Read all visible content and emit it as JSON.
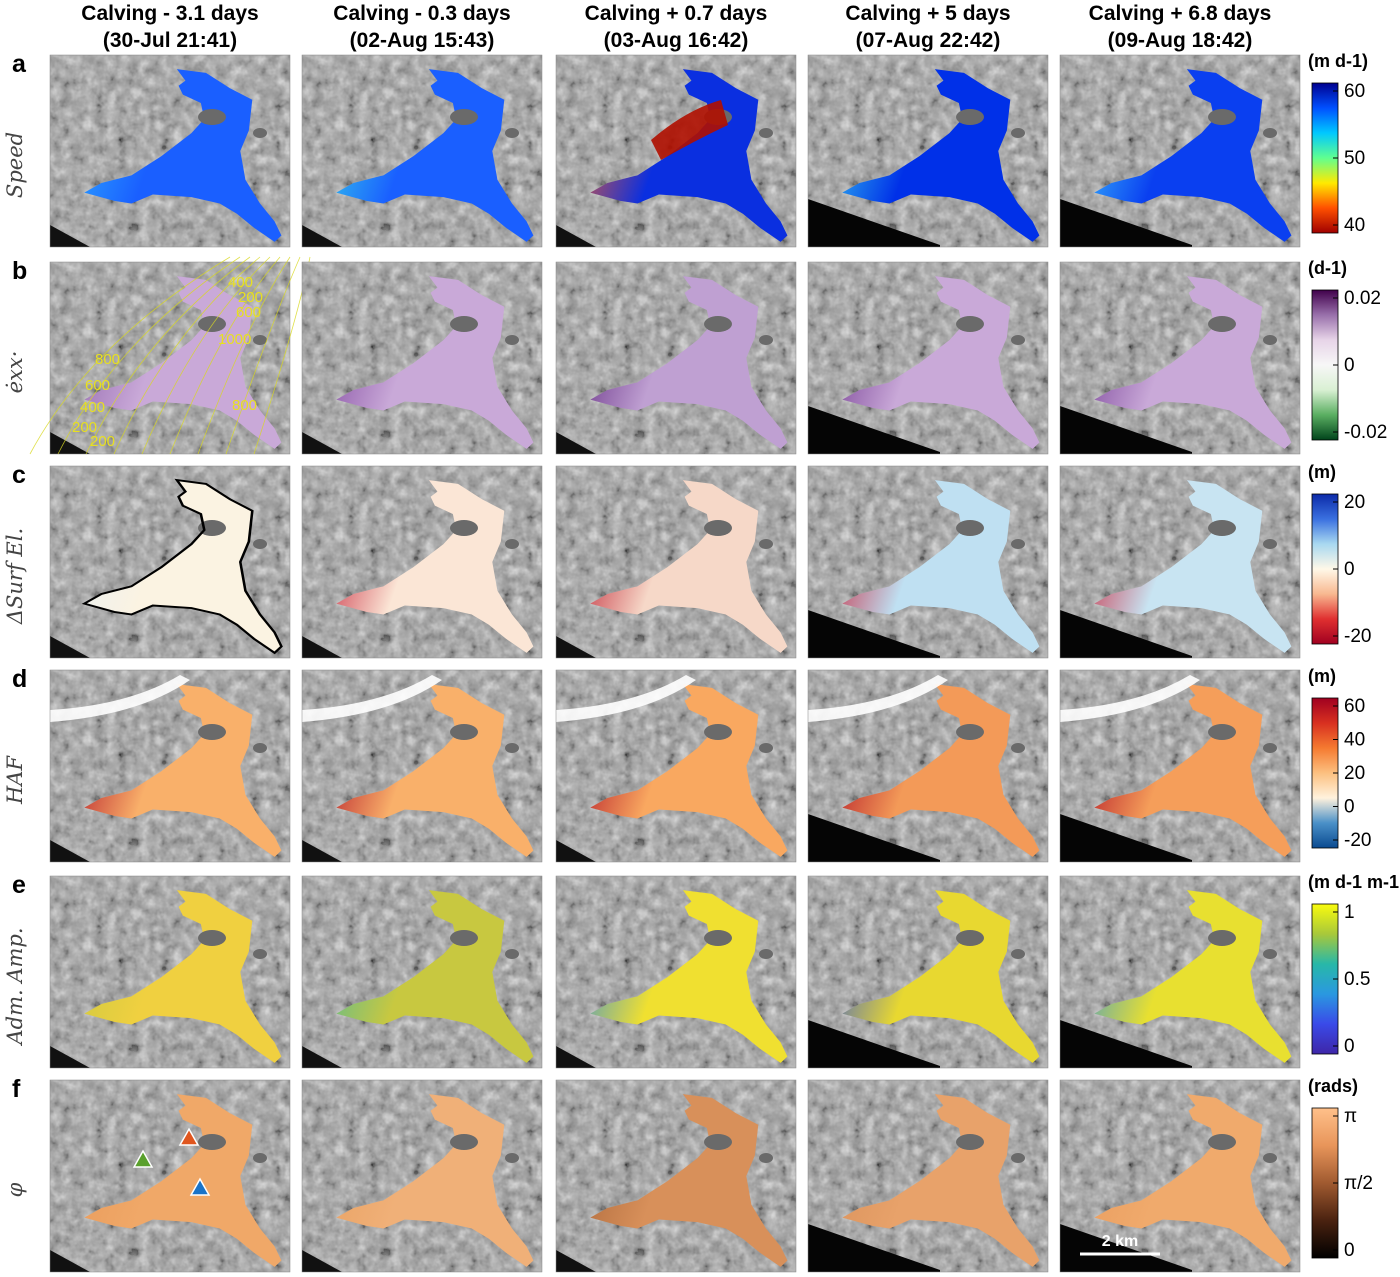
{
  "columns": [
    {
      "title": "Calving - 3.1 days",
      "date": "(30-Jul 21:41)"
    },
    {
      "title": "Calving - 0.3 days",
      "date": "(02-Aug 15:43)"
    },
    {
      "title": "Calving + 0.7 days",
      "date": "(03-Aug 16:42)"
    },
    {
      "title": "Calving + 5 days",
      "date": "(07-Aug 22:42)"
    },
    {
      "title": "Calving + 6.8 days",
      "date": "(09-Aug 18:42)"
    }
  ],
  "rows": [
    {
      "letter": "a",
      "label": "Speed",
      "unit": "(m d-1)",
      "ticks": [
        "60",
        "50",
        "40"
      ],
      "colormap": [
        "#00008f",
        "#0050ff",
        "#00c8ff",
        "#60ff90",
        "#ffea00",
        "#ff5000",
        "#a00000"
      ],
      "panel_colors": [
        [
          "#1a5fff",
          "#2fb0ff"
        ],
        [
          "#1a5fff",
          "#38d8e8"
        ],
        [
          "#0a2fe0",
          "#ff6020"
        ],
        [
          "#0030e8",
          "#3ad0f0"
        ],
        [
          "#0a3ff0",
          "#40c8ff"
        ]
      ]
    },
    {
      "letter": "b",
      "label": "ėxx·",
      "unit": "(d-1)",
      "ticks": [
        "0.02",
        "0",
        "-0.02"
      ],
      "colormap": [
        "#40004b",
        "#9970ab",
        "#e7d4e8",
        "#f7f7f7",
        "#d9f0d3",
        "#5aae61",
        "#00441b"
      ],
      "panel_colors": [
        [
          "#c9a9d8",
          "#8c5fa8"
        ],
        [
          "#c9a9d8",
          "#7a3f9a"
        ],
        [
          "#bfa0d2",
          "#5a1f7a"
        ],
        [
          "#c9a9d8",
          "#6a2f8a"
        ],
        [
          "#c9a9d8",
          "#6f3590"
        ]
      ]
    },
    {
      "letter": "c",
      "label": "ΔSurf El.",
      "unit": "(m)",
      "ticks": [
        "20",
        "0",
        "-20"
      ],
      "colormap": [
        "#0b2aa8",
        "#3a70e0",
        "#a8d8f0",
        "#fff8e8",
        "#f8b890",
        "#e03030",
        "#a00020"
      ],
      "panel_colors": [
        [
          "#fbf3e2",
          "#e8f0f4"
        ],
        [
          "#fbe6d6",
          "#c0102a"
        ],
        [
          "#f6d8c8",
          "#b80a20"
        ],
        [
          "#bfe0f2",
          "#c81028"
        ],
        [
          "#c8e4f2",
          "#c81028"
        ]
      ]
    },
    {
      "letter": "d",
      "label": "HAF",
      "unit": "(m)",
      "ticks": [
        "60",
        "40",
        "20",
        "0",
        "-20"
      ],
      "colormap": [
        "#a00020",
        "#d83020",
        "#f57a30",
        "#fcc080",
        "#fff2dd",
        "#4a90c8",
        "#0a4a90"
      ],
      "panel_colors": [
        [
          "#f9b06a",
          "#a8001e"
        ],
        [
          "#f9b06a",
          "#a8001e"
        ],
        [
          "#f9a860",
          "#a8001e"
        ],
        [
          "#f39a58",
          "#a8001e"
        ],
        [
          "#f59e5a",
          "#a8001e"
        ]
      ]
    },
    {
      "letter": "e",
      "label": "Adm. Amp.",
      "unit": "(m d-1 m-1",
      "ticks": [
        "1",
        "0.5",
        "0"
      ],
      "colormap": [
        "#f9fb0e",
        "#a8c83a",
        "#28b8a8",
        "#2a98e0",
        "#3a4ae8",
        "#3e26a8"
      ],
      "panel_colors": [
        [
          "#f0d040",
          "#c8c840"
        ],
        [
          "#c8c840",
          "#48b8a0"
        ],
        [
          "#f0e030",
          "#2a88e8"
        ],
        [
          "#e8d830",
          "#3050e0"
        ],
        [
          "#e8e030",
          "#3090e0"
        ]
      ]
    },
    {
      "letter": "f",
      "label": "φ",
      "unit": "(rads)",
      "ticks": [
        "π",
        "π/2",
        "0"
      ],
      "colormap": [
        "#ffc08a",
        "#e8955a",
        "#a05a30",
        "#4a2210",
        "#000000"
      ],
      "panel_colors": [
        [
          "#f0a868",
          "#e89a5a"
        ],
        [
          "#f0b078",
          "#e8a060"
        ],
        [
          "#d8905a",
          "#a86438"
        ],
        [
          "#e8a26a",
          "#d8905a"
        ],
        [
          "#f0aa6c",
          "#e89c5e"
        ]
      ]
    }
  ],
  "contours": [
    "200",
    "400",
    "600",
    "800",
    "1000",
    "200",
    "200",
    "400",
    "600",
    "800"
  ],
  "scalebar": "2 km",
  "markers": [
    {
      "name": "green-triangle",
      "color": "#5aa02c"
    },
    {
      "name": "orange-triangle",
      "color": "#e0561e"
    },
    {
      "name": "blue-triangle",
      "color": "#1a73c8"
    }
  ],
  "colors": {
    "background": "#9a9a9a",
    "ice_mask": "#6a6a6a",
    "text": "#000000"
  }
}
